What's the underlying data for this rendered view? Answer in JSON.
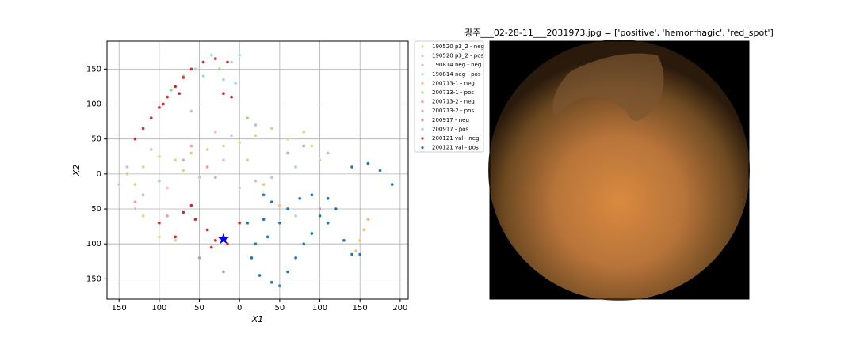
{
  "chart_data": {
    "type": "scatter",
    "xlabel": "X1",
    "ylabel": "X2",
    "xlim": [
      -165,
      210
    ],
    "ylim": [
      -179,
      190
    ],
    "xticks": [
      {
        "value": -150,
        "label": "150"
      },
      {
        "value": -100,
        "label": "100"
      },
      {
        "value": -50,
        "label": "50"
      },
      0,
      50,
      100,
      150,
      200
    ],
    "yticks": [
      {
        "value": -150,
        "label": "150"
      },
      {
        "value": -100,
        "label": "100"
      },
      {
        "value": -50,
        "label": "50"
      },
      0,
      50,
      100,
      150
    ],
    "grid": true,
    "legend": "outside-right",
    "series": [
      {
        "name": "190520 p3_2 - neg",
        "color": "#d6d68a",
        "x": [
          -140,
          -120,
          -100,
          -80,
          -60,
          -40,
          -20,
          0,
          20,
          40,
          60,
          80,
          90,
          100,
          -120,
          -100,
          -80,
          -130,
          -70,
          10
        ],
        "values": [
          0,
          10,
          25,
          20,
          30,
          35,
          40,
          45,
          55,
          65,
          50,
          60,
          40,
          20,
          -60,
          -90,
          -95,
          -15,
          5,
          20
        ]
      },
      {
        "name": "190520 p3_2 - pos",
        "color": "#f4b4cf",
        "x": [
          -150,
          -130,
          -90,
          -50,
          -30,
          -10,
          -110,
          -140,
          -20
        ],
        "values": [
          -15,
          -50,
          -20,
          -5,
          60,
          55,
          35,
          10,
          20
        ]
      },
      {
        "name": "190814 neg - neg",
        "color": "#c7c7c7",
        "x": [
          0,
          20,
          40,
          70,
          -20,
          -60
        ],
        "values": [
          -20,
          -10,
          -5,
          -60,
          -140,
          90
        ]
      },
      {
        "name": "190814 neg - pos",
        "color": "#9edae5",
        "x": [
          -55,
          -35,
          -10,
          -20,
          -5,
          -45,
          0
        ],
        "values": [
          150,
          170,
          160,
          135,
          130,
          140,
          170
        ]
      },
      {
        "name": "200713-1 - neg",
        "color": "#ffbb78",
        "x": [
          145,
          150,
          155,
          160,
          30,
          50
        ],
        "values": [
          -110,
          -95,
          -80,
          -65,
          -15,
          -45
        ]
      },
      {
        "name": "200713-1 - pos",
        "color": "#98df8a",
        "x": [
          -70,
          -85,
          -25,
          10
        ],
        "values": [
          140,
          120,
          150,
          80
        ]
      },
      {
        "name": "200713-2 - neg",
        "color": "#ff9896",
        "x": [
          -90,
          -60,
          -130,
          -40
        ],
        "values": [
          -60,
          40,
          -40,
          10
        ]
      },
      {
        "name": "200713-2 - pos",
        "color": "#c5b0d5",
        "x": [
          -120,
          -70,
          60,
          -30
        ],
        "values": [
          -30,
          20,
          30,
          -5
        ]
      },
      {
        "name": "200917 - neg",
        "color": "#c49c94",
        "x": [
          -20,
          80,
          100,
          -50
        ],
        "values": [
          -140,
          40,
          -50,
          -120
        ]
      },
      {
        "name": "200917 - pos",
        "color": "#aec7e8",
        "x": [
          -100,
          20,
          70,
          110
        ],
        "values": [
          -10,
          70,
          10,
          30
        ]
      },
      {
        "name": "200121 val - neg",
        "color": "#d62728",
        "x": [
          -130,
          -120,
          -110,
          -100,
          -90,
          -80,
          -70,
          -60,
          -45,
          -30,
          -15,
          -10,
          -20,
          -60,
          -70,
          -55,
          -40,
          -30,
          -15,
          -35,
          -80,
          -100,
          0,
          -95,
          -75
        ],
        "values": [
          50,
          65,
          80,
          95,
          110,
          125,
          138,
          150,
          160,
          165,
          160,
          110,
          115,
          -45,
          -55,
          -65,
          -80,
          -95,
          -100,
          -105,
          -90,
          -70,
          -70,
          100,
          115
        ]
      },
      {
        "name": "200121 val - pos",
        "color": "#1f77b4",
        "x": [
          10,
          30,
          50,
          60,
          75,
          90,
          110,
          120,
          110,
          90,
          80,
          70,
          60,
          40,
          25,
          15,
          20,
          35,
          40,
          30,
          140,
          160,
          175,
          190,
          130,
          140,
          150,
          50,
          100
        ],
        "values": [
          -70,
          -65,
          -70,
          -50,
          -35,
          -30,
          -35,
          -50,
          -70,
          -85,
          -100,
          -120,
          -140,
          -155,
          -145,
          -120,
          -100,
          -90,
          -40,
          -30,
          10,
          15,
          5,
          -15,
          -95,
          -115,
          -115,
          -160,
          -60
        ]
      }
    ],
    "highlight": {
      "x": -20,
      "y": -93,
      "color": "#0000ff"
    },
    "image_title": "광주___02-28-11___2031973.jpg = ['positive', 'hemorrhagic', 'red_spot']"
  }
}
